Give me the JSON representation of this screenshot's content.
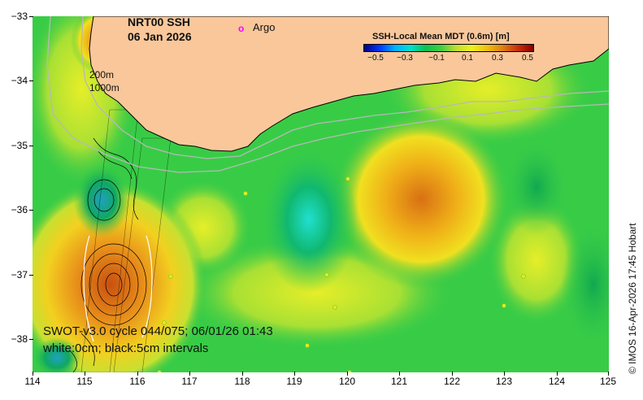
{
  "title": {
    "line1": "NRT00 SSH",
    "line2": "06 Jan 2026"
  },
  "legend": {
    "argo_marker": "o",
    "argo_label": "Argo",
    "isobath_200": "200m",
    "isobath_1000": "1000m"
  },
  "colorbar": {
    "title": "SSH-Local Mean MDT (0.6m) [m]",
    "ticks": [
      "−0.5",
      "−0.3",
      "−0.1",
      "0.1",
      "0.3",
      "0.5"
    ],
    "colors": [
      "#000080",
      "#0038ff",
      "#00b0ff",
      "#00e0d0",
      "#10c050",
      "#40d040",
      "#c0e030",
      "#f0f020",
      "#f0c010",
      "#e08010",
      "#c83010",
      "#8a0000"
    ]
  },
  "axes": {
    "y_ticks": [
      "−33",
      "−34",
      "−35",
      "−36",
      "−37",
      "−38"
    ],
    "x_ticks": [
      "114",
      "115",
      "116",
      "117",
      "118",
      "119",
      "120",
      "121",
      "122",
      "123",
      "124",
      "125"
    ],
    "lon_range": [
      114,
      125
    ],
    "lat_range": [
      -33,
      -38.5
    ]
  },
  "annotation": {
    "swot_line1": "SWOT-v3.0 cycle 044/075; 06/01/26 01:43",
    "swot_line2": "white:0cm; black:5cm intervals"
  },
  "credit": "© IMOS 16-Apr-2026 17:45 Hobart",
  "map_colors": {
    "land": "#f9c79a",
    "ocean_base": "#33c94a",
    "isobath": "#b8b8b8"
  }
}
